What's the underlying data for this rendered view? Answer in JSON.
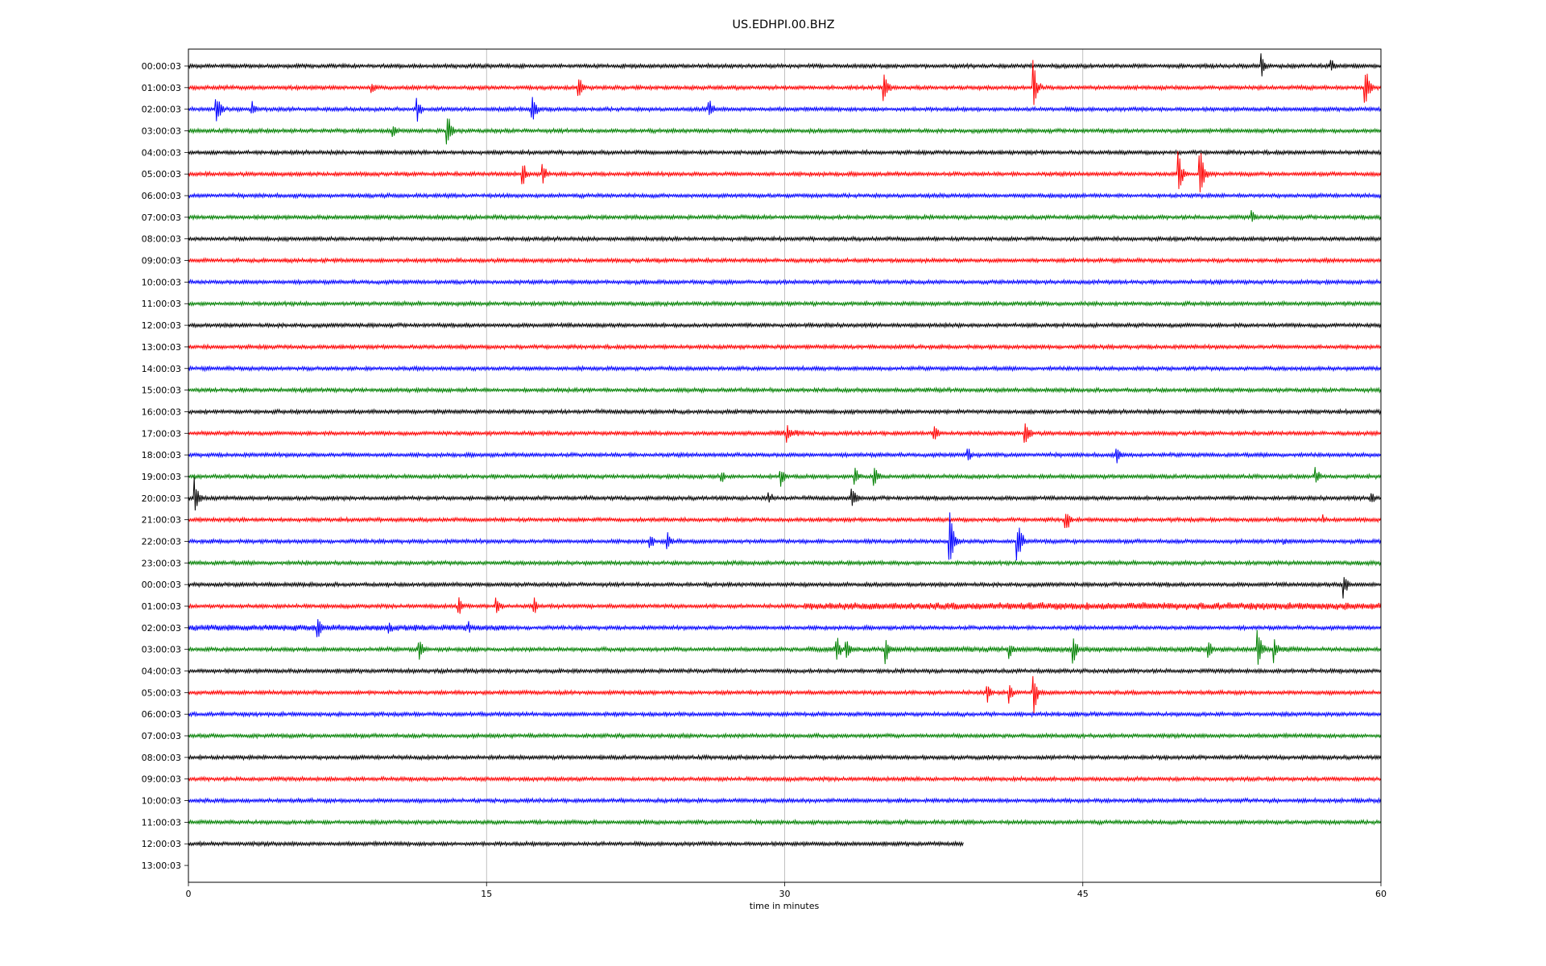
{
  "chart_data": {
    "type": "line",
    "title": "US.EDHPI.00.BHZ",
    "xlabel": "time in minutes",
    "xlim": [
      0,
      60
    ],
    "xticks": [
      0,
      15,
      30,
      45,
      60
    ],
    "grid": "vertical",
    "colors": [
      "#000000",
      "#ff0000",
      "#0000ff",
      "#008000"
    ],
    "row_labels": [
      "00:00:03",
      "01:00:03",
      "02:00:03",
      "03:00:03",
      "04:00:03",
      "05:00:03",
      "06:00:03",
      "07:00:03",
      "08:00:03",
      "09:00:03",
      "10:00:03",
      "11:00:03",
      "12:00:03",
      "13:00:03",
      "14:00:03",
      "15:00:03",
      "16:00:03",
      "17:00:03",
      "18:00:03",
      "19:00:03",
      "20:00:03",
      "21:00:03",
      "22:00:03",
      "23:00:03",
      "00:00:03",
      "01:00:03",
      "02:00:03",
      "03:00:03",
      "04:00:03",
      "05:00:03",
      "06:00:03",
      "07:00:03",
      "08:00:03",
      "09:00:03",
      "10:00:03",
      "11:00:03",
      "12:00:03",
      "13:00:03"
    ],
    "row_end_minutes": [
      60,
      60,
      60,
      60,
      60,
      60,
      60,
      60,
      60,
      60,
      60,
      60,
      60,
      60,
      60,
      60,
      60,
      60,
      60,
      60,
      60,
      60,
      60,
      60,
      60,
      60,
      60,
      60,
      60,
      60,
      60,
      60,
      60,
      60,
      60,
      60,
      39,
      0
    ],
    "events": [
      {
        "row": 0,
        "t": 54,
        "amp": 0.5
      },
      {
        "row": 0,
        "t": 57.5,
        "amp": 0.3
      },
      {
        "row": 1,
        "t": 9.2,
        "amp": 0.3
      },
      {
        "row": 1,
        "t": 19.6,
        "amp": 0.55
      },
      {
        "row": 1,
        "t": 35,
        "amp": 0.6
      },
      {
        "row": 1,
        "t": 42.5,
        "amp": 1.0
      },
      {
        "row": 1,
        "t": 59.2,
        "amp": 0.9
      },
      {
        "row": 2,
        "t": 1.4,
        "amp": 0.7
      },
      {
        "row": 2,
        "t": 3.2,
        "amp": 0.3
      },
      {
        "row": 2,
        "t": 11.5,
        "amp": 0.55
      },
      {
        "row": 2,
        "t": 17.3,
        "amp": 0.6
      },
      {
        "row": 2,
        "t": 26.2,
        "amp": 0.4
      },
      {
        "row": 3,
        "t": 10.3,
        "amp": 0.3
      },
      {
        "row": 3,
        "t": 13,
        "amp": 0.8
      },
      {
        "row": 5,
        "t": 16.8,
        "amp": 0.6
      },
      {
        "row": 5,
        "t": 17.8,
        "amp": 0.5
      },
      {
        "row": 5,
        "t": 49.8,
        "amp": 1.0
      },
      {
        "row": 5,
        "t": 50.9,
        "amp": 1.1
      },
      {
        "row": 7,
        "t": 53.5,
        "amp": 0.3
      },
      {
        "row": 17,
        "t": 30.1,
        "amp": 0.5
      },
      {
        "row": 17,
        "t": 37.5,
        "amp": 0.4
      },
      {
        "row": 17,
        "t": 42.1,
        "amp": 0.6
      },
      {
        "row": 18,
        "t": 39.2,
        "amp": 0.35
      },
      {
        "row": 18,
        "t": 46.7,
        "amp": 0.35
      },
      {
        "row": 19,
        "t": 26.8,
        "amp": 0.3
      },
      {
        "row": 19,
        "t": 29.8,
        "amp": 0.4
      },
      {
        "row": 19,
        "t": 33.5,
        "amp": 0.5
      },
      {
        "row": 19,
        "t": 34.5,
        "amp": 0.5
      },
      {
        "row": 19,
        "t": 56.7,
        "amp": 0.4
      },
      {
        "row": 20,
        "t": 0.3,
        "amp": 0.9
      },
      {
        "row": 20,
        "t": 29.2,
        "amp": 0.3
      },
      {
        "row": 20,
        "t": 33.4,
        "amp": 0.5
      },
      {
        "row": 20,
        "t": 59.5,
        "amp": 0.3
      },
      {
        "row": 21,
        "t": 44.1,
        "amp": 0.6
      },
      {
        "row": 21,
        "t": 57.1,
        "amp": 0.2
      },
      {
        "row": 22,
        "t": 23.2,
        "amp": 0.35
      },
      {
        "row": 22,
        "t": 24.1,
        "amp": 0.35
      },
      {
        "row": 22,
        "t": 38.3,
        "amp": 1.3
      },
      {
        "row": 22,
        "t": 41.7,
        "amp": 0.9
      },
      {
        "row": 22,
        "t": 55.1,
        "amp": 0.2
      },
      {
        "row": 24,
        "t": 58.1,
        "amp": 0.55
      },
      {
        "row": 25,
        "t": 13.6,
        "amp": 0.35
      },
      {
        "row": 25,
        "t": 15.5,
        "amp": 0.45
      },
      {
        "row": 25,
        "t": 17.4,
        "amp": 0.3
      },
      {
        "row": 25,
        "t": 45.2,
        "amp": 0.25
      },
      {
        "row": 26,
        "t": 6.5,
        "amp": 0.5
      },
      {
        "row": 26,
        "t": 10.1,
        "amp": 0.25
      },
      {
        "row": 26,
        "t": 14.1,
        "amp": 0.25
      },
      {
        "row": 27,
        "t": 11.6,
        "amp": 0.5
      },
      {
        "row": 27,
        "t": 32.6,
        "amp": 0.6
      },
      {
        "row": 27,
        "t": 33.1,
        "amp": 0.5
      },
      {
        "row": 27,
        "t": 35.1,
        "amp": 0.5
      },
      {
        "row": 27,
        "t": 41.3,
        "amp": 0.45
      },
      {
        "row": 27,
        "t": 44.5,
        "amp": 0.7
      },
      {
        "row": 27,
        "t": 51.3,
        "amp": 0.4
      },
      {
        "row": 27,
        "t": 53.8,
        "amp": 0.9
      },
      {
        "row": 27,
        "t": 54.6,
        "amp": 0.6
      },
      {
        "row": 29,
        "t": 40.2,
        "amp": 0.4
      },
      {
        "row": 29,
        "t": 41.3,
        "amp": 0.5
      },
      {
        "row": 29,
        "t": 42.5,
        "amp": 0.85
      }
    ],
    "noisy_segments": [
      {
        "row": 25,
        "start": 31,
        "end": 60,
        "level": 1.8
      },
      {
        "row": 26,
        "start": 0,
        "end": 16,
        "level": 1.5
      },
      {
        "row": 27,
        "start": 31,
        "end": 56,
        "level": 1.3
      },
      {
        "row": 17,
        "start": 29.5,
        "end": 31,
        "level": 1.6
      }
    ]
  }
}
